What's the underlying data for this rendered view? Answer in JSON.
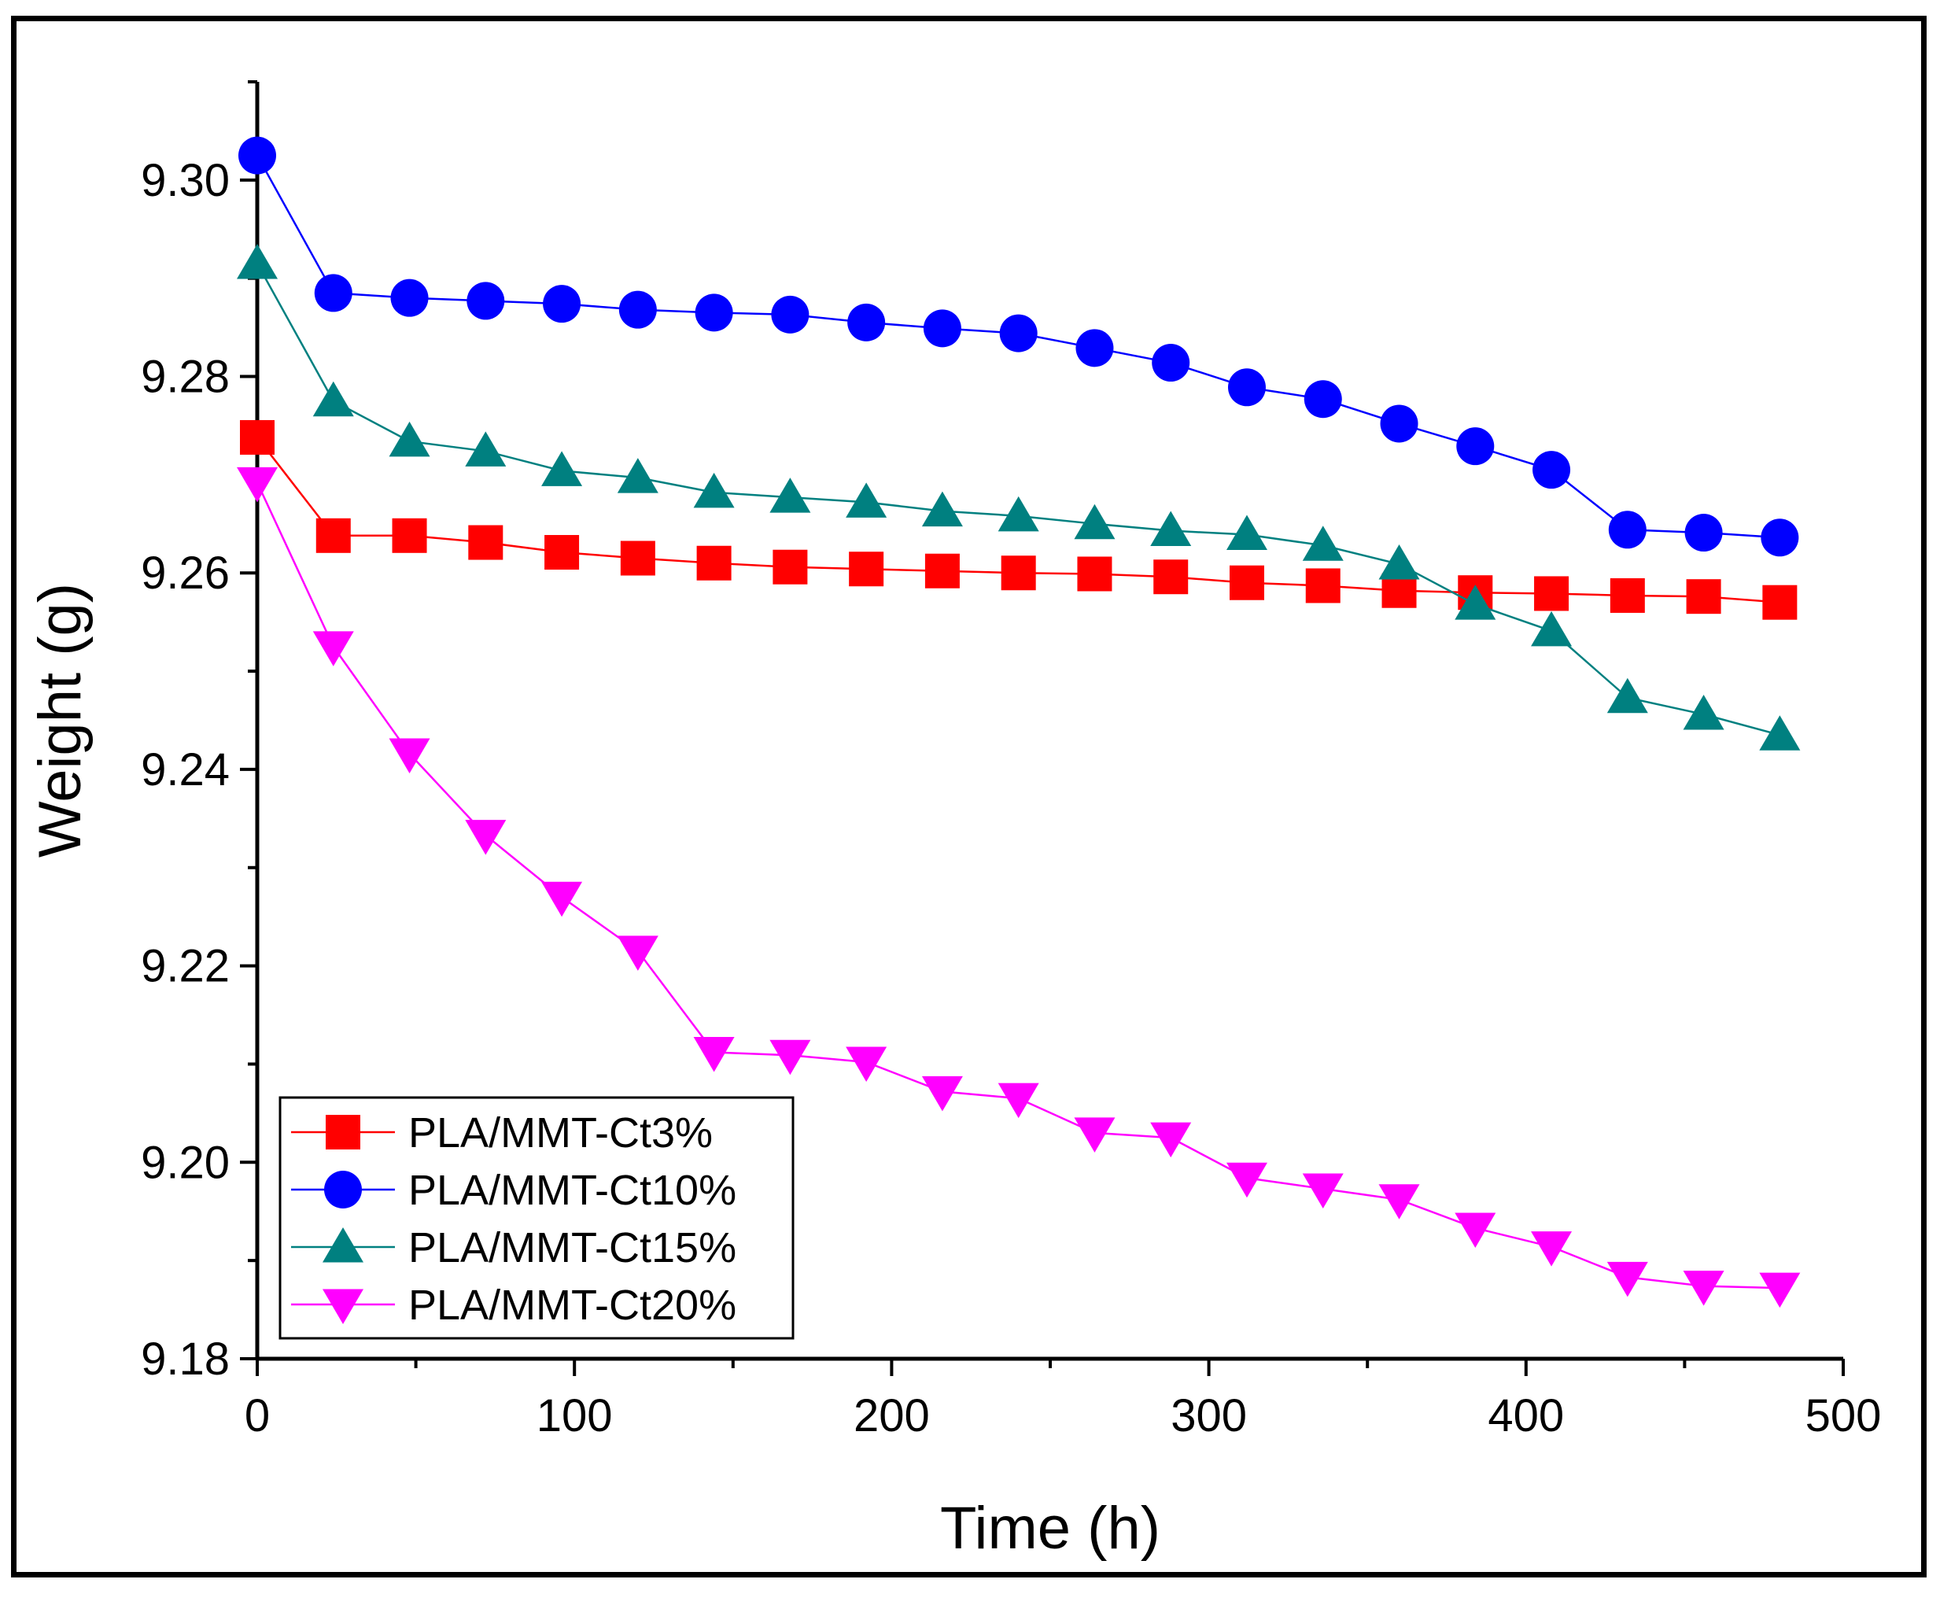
{
  "chart_data": {
    "type": "line",
    "title": "",
    "xlabel": "Time (h)",
    "ylabel": "Weight (g)",
    "xlim": [
      0,
      500
    ],
    "ylim": [
      9.18,
      9.31
    ],
    "x_ticks": [
      0,
      100,
      200,
      300,
      400,
      500
    ],
    "x_tick_labels": [
      "0",
      "100",
      "200",
      "300",
      "400",
      "500"
    ],
    "y_ticks": [
      9.18,
      9.2,
      9.22,
      9.24,
      9.26,
      9.28,
      9.3
    ],
    "y_tick_labels": [
      "9.18",
      "9.20",
      "9.22",
      "9.24",
      "9.26",
      "9.28",
      "9.30"
    ],
    "grid": false,
    "legend_position": "bottom-left",
    "x": [
      0,
      24,
      48,
      72,
      96,
      120,
      144,
      168,
      192,
      216,
      240,
      264,
      288,
      312,
      336,
      360,
      384,
      408,
      432,
      456,
      480
    ],
    "series": [
      {
        "name": "PLA/MMT-Ct3%",
        "color": "#ff0000",
        "marker": "square",
        "values": [
          9.2738,
          9.2638,
          9.2638,
          9.2631,
          9.2621,
          9.2615,
          9.261,
          9.2606,
          9.2604,
          9.2602,
          9.26,
          9.2599,
          9.2596,
          9.259,
          9.2587,
          9.2582,
          9.258,
          9.2579,
          9.2577,
          9.2576,
          9.257
        ]
      },
      {
        "name": "PLA/MMT-Ct10%",
        "color": "#0000ff",
        "marker": "circle",
        "values": [
          9.3025,
          9.2885,
          9.288,
          9.2877,
          9.2874,
          9.2868,
          9.2865,
          9.2863,
          9.2855,
          9.2849,
          9.2844,
          9.2829,
          9.2814,
          9.2789,
          9.2777,
          9.2752,
          9.2729,
          9.2705,
          9.2644,
          9.2641,
          9.2636
        ]
      },
      {
        "name": "PLA/MMT-Ct15%",
        "color": "#008080",
        "marker": "triangle-up",
        "values": [
          9.2915,
          9.2775,
          9.2734,
          9.2724,
          9.2704,
          9.2697,
          9.2682,
          9.2677,
          9.2672,
          9.2663,
          9.2658,
          9.265,
          9.2643,
          9.2639,
          9.2628,
          9.2609,
          9.2568,
          9.2541,
          9.2473,
          9.2456,
          9.2435
        ]
      },
      {
        "name": "PLA/MMT-Ct20%",
        "color": "#ff00ff",
        "marker": "triangle-down",
        "values": [
          9.2692,
          9.2525,
          9.2416,
          9.2333,
          9.227,
          9.2215,
          9.2112,
          9.2109,
          9.2102,
          9.2072,
          9.2065,
          9.203,
          9.2025,
          9.1984,
          9.1973,
          9.1962,
          9.1933,
          9.1914,
          9.1883,
          9.1874,
          9.1872
        ]
      }
    ]
  }
}
